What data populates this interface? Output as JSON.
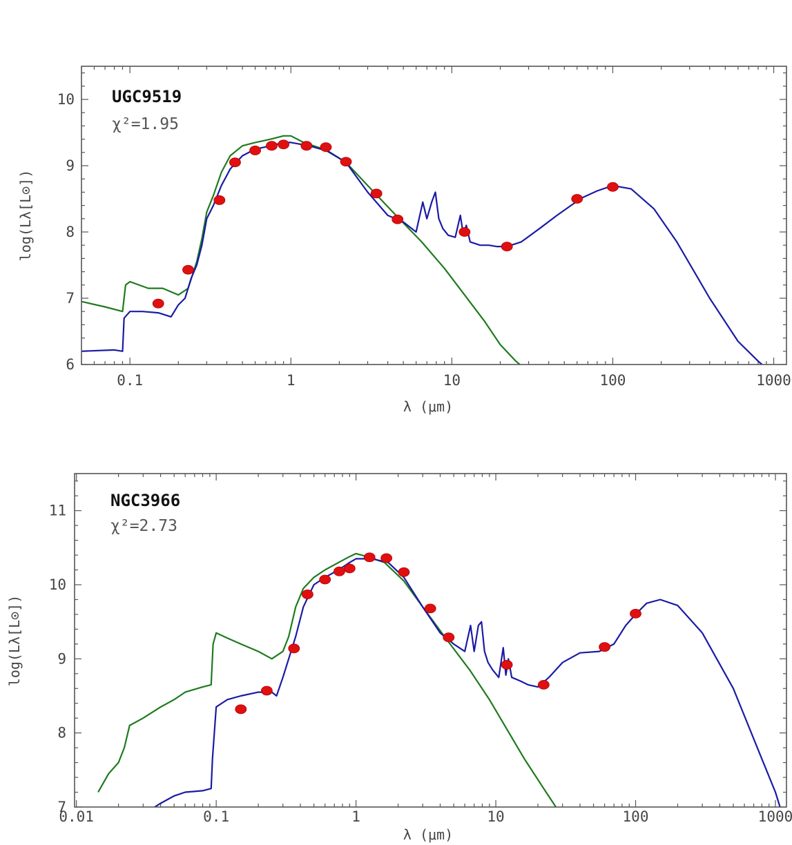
{
  "chart_data": [
    {
      "type": "line",
      "galaxy": "UGC9519",
      "chi_square": "χ²=1.95",
      "xlabel": "λ (μm)",
      "ylabel": "log(Lλ[L⊙])",
      "xscale": "log",
      "xlim": [
        0.05,
        1200
      ],
      "ylim": [
        6,
        10.5
      ],
      "xticks": [
        "0.1",
        "1",
        "10",
        "100",
        "1000"
      ],
      "yticks": [
        "6",
        "7",
        "8",
        "9",
        "10"
      ],
      "colors": {
        "model_total": "#1a1aa6",
        "stellar_unattenuated": "#1e7a1e",
        "observed": "#e01010"
      },
      "series": [
        {
          "key": "stellar_unattenuated",
          "style": "green-line",
          "x": [
            0.05,
            0.07,
            0.09,
            0.094,
            0.1,
            0.13,
            0.16,
            0.2,
            0.23,
            0.26,
            0.28,
            0.3,
            0.33,
            0.37,
            0.42,
            0.5,
            0.6,
            0.75,
            0.9,
            1.0,
            1.2,
            1.6,
            2.2,
            3.0,
            4.5,
            6.5,
            9,
            12,
            16,
            20,
            25,
            28
          ],
          "y": [
            6.95,
            6.87,
            6.8,
            7.2,
            7.25,
            7.15,
            7.15,
            7.05,
            7.15,
            7.55,
            7.9,
            8.3,
            8.55,
            8.9,
            9.15,
            9.3,
            9.35,
            9.4,
            9.45,
            9.45,
            9.35,
            9.25,
            9.05,
            8.7,
            8.25,
            7.85,
            7.45,
            7.05,
            6.65,
            6.3,
            6.05,
            5.95
          ]
        },
        {
          "key": "model_total",
          "style": "blue-line",
          "x": [
            0.05,
            0.08,
            0.09,
            0.092,
            0.1,
            0.12,
            0.15,
            0.18,
            0.2,
            0.22,
            0.24,
            0.26,
            0.28,
            0.3,
            0.33,
            0.37,
            0.42,
            0.5,
            0.6,
            0.75,
            0.9,
            1.0,
            1.3,
            1.7,
            2.2,
            3.0,
            4.0,
            5.0,
            6.0,
            6.6,
            7.0,
            7.5,
            7.9,
            8.3,
            8.8,
            9.5,
            10.5,
            11.3,
            11.8,
            12.3,
            13,
            15,
            17,
            19,
            22,
            27,
            35,
            45,
            55,
            65,
            80,
            100,
            130,
            180,
            250,
            400,
            600,
            800,
            1000,
            1100
          ],
          "y": [
            6.2,
            6.22,
            6.2,
            6.7,
            6.8,
            6.8,
            6.78,
            6.72,
            6.9,
            7.0,
            7.3,
            7.5,
            7.8,
            8.2,
            8.4,
            8.7,
            8.95,
            9.15,
            9.25,
            9.3,
            9.35,
            9.35,
            9.3,
            9.22,
            9.05,
            8.6,
            8.25,
            8.15,
            8.0,
            8.45,
            8.2,
            8.45,
            8.6,
            8.2,
            8.05,
            7.95,
            7.92,
            8.25,
            7.95,
            8.1,
            7.85,
            7.8,
            7.8,
            7.78,
            7.78,
            7.85,
            8.05,
            8.25,
            8.4,
            8.52,
            8.62,
            8.7,
            8.65,
            8.35,
            7.85,
            7.0,
            6.35,
            6.05,
            5.85,
            5.75
          ]
        }
      ],
      "observed": {
        "x": [
          0.15,
          0.23,
          0.36,
          0.45,
          0.6,
          0.76,
          0.9,
          1.25,
          1.65,
          2.2,
          3.4,
          4.6,
          12,
          22,
          60,
          100
        ],
        "y": [
          6.92,
          7.43,
          8.48,
          9.05,
          9.23,
          9.3,
          9.32,
          9.3,
          9.28,
          9.06,
          8.58,
          8.19,
          8.0,
          7.78,
          8.5,
          8.68
        ]
      }
    },
    {
      "type": "line",
      "galaxy": "NGC3966",
      "chi_square": "χ²=2.73",
      "xlabel": "λ (μm)",
      "ylabel": "log(Lλ[L⊙])",
      "xscale": "log",
      "xlim": [
        0.0097,
        1200
      ],
      "ylim": [
        7,
        11.5
      ],
      "xticks": [
        "0.01",
        "0.1",
        "1",
        "10",
        "100",
        "1000"
      ],
      "yticks": [
        "7",
        "8",
        "9",
        "10",
        "11"
      ],
      "colors": {
        "model_total": "#1a1aa6",
        "stellar_unattenuated": "#1e7a1e",
        "observed": "#e01010"
      },
      "series": [
        {
          "key": "stellar_unattenuated",
          "style": "green-line",
          "x": [
            0.0143,
            0.017,
            0.02,
            0.022,
            0.024,
            0.03,
            0.04,
            0.05,
            0.06,
            0.08,
            0.092,
            0.095,
            0.1,
            0.12,
            0.15,
            0.2,
            0.25,
            0.3,
            0.33,
            0.37,
            0.42,
            0.5,
            0.6,
            0.75,
            0.9,
            1.0,
            1.2,
            1.6,
            2.2,
            3.0,
            4.5,
            6.5,
            9,
            12,
            16,
            22,
            28,
            32
          ],
          "y": [
            7.2,
            7.45,
            7.6,
            7.8,
            8.1,
            8.2,
            8.35,
            8.45,
            8.55,
            8.62,
            8.65,
            9.2,
            9.35,
            9.28,
            9.2,
            9.1,
            9.0,
            9.1,
            9.3,
            9.7,
            9.95,
            10.1,
            10.2,
            10.3,
            10.38,
            10.42,
            10.38,
            10.3,
            10.05,
            9.7,
            9.25,
            8.85,
            8.45,
            8.05,
            7.65,
            7.25,
            6.95,
            6.8
          ]
        },
        {
          "key": "model_total",
          "style": "blue-line",
          "x": [
            0.033,
            0.04,
            0.05,
            0.06,
            0.08,
            0.092,
            0.094,
            0.1,
            0.12,
            0.15,
            0.2,
            0.25,
            0.27,
            0.3,
            0.33,
            0.37,
            0.42,
            0.5,
            0.6,
            0.75,
            0.9,
            1.0,
            1.3,
            1.7,
            2.2,
            3.0,
            4.0,
            5.0,
            6.0,
            6.6,
            7.0,
            7.5,
            7.9,
            8.3,
            8.8,
            9.5,
            10.5,
            11.3,
            11.8,
            12.3,
            13,
            15,
            17,
            20,
            24,
            30,
            40,
            55,
            70,
            85,
            100,
            120,
            150,
            200,
            300,
            500,
            800,
            1000,
            1100
          ],
          "y": [
            6.95,
            7.05,
            7.15,
            7.2,
            7.22,
            7.25,
            7.65,
            8.35,
            8.45,
            8.5,
            8.55,
            8.55,
            8.5,
            8.75,
            9.0,
            9.3,
            9.7,
            10.0,
            10.1,
            10.2,
            10.3,
            10.35,
            10.35,
            10.3,
            10.1,
            9.7,
            9.35,
            9.2,
            9.1,
            9.45,
            9.1,
            9.45,
            9.5,
            9.1,
            8.95,
            8.85,
            8.75,
            9.15,
            8.78,
            9.0,
            8.75,
            8.7,
            8.65,
            8.62,
            8.75,
            8.95,
            9.08,
            9.1,
            9.2,
            9.45,
            9.6,
            9.75,
            9.8,
            9.72,
            9.35,
            8.6,
            7.65,
            7.2,
            6.95
          ]
        }
      ],
      "observed": {
        "x": [
          0.15,
          0.23,
          0.36,
          0.45,
          0.6,
          0.76,
          0.9,
          1.25,
          1.65,
          2.2,
          3.4,
          4.6,
          12,
          22,
          60,
          100
        ],
        "y": [
          8.32,
          8.57,
          9.14,
          9.87,
          10.07,
          10.18,
          10.22,
          10.37,
          10.36,
          10.17,
          9.68,
          9.29,
          8.92,
          8.65,
          9.16,
          9.61
        ]
      }
    }
  ]
}
